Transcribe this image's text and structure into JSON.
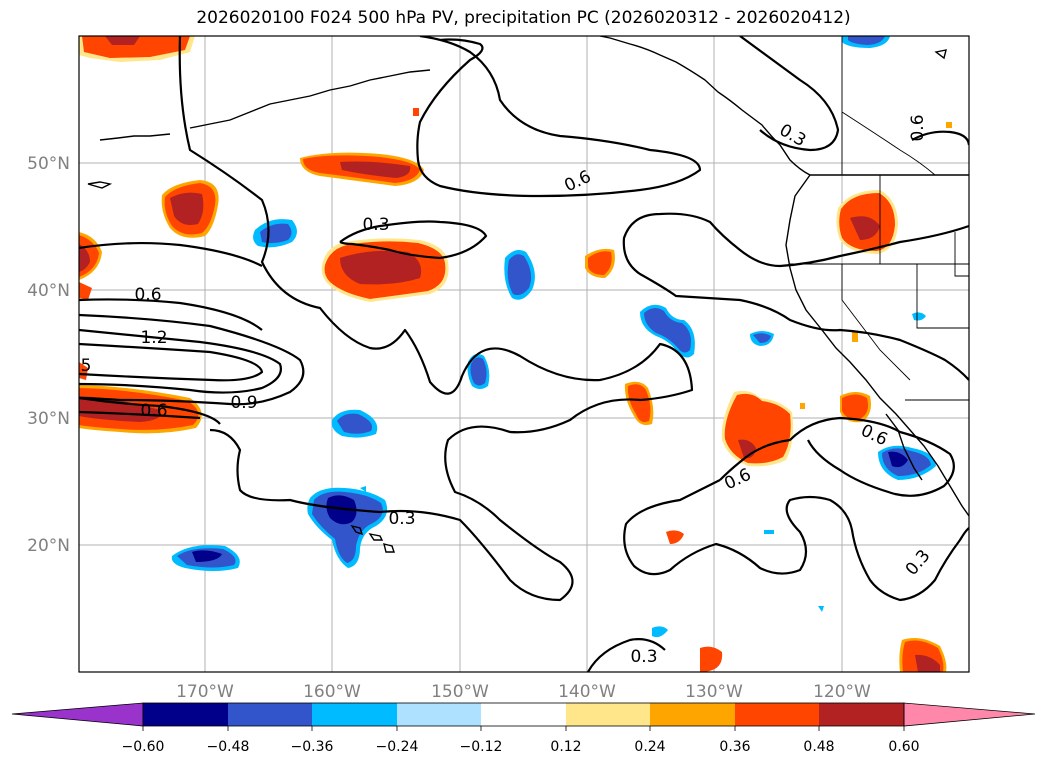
{
  "title": "2026020100 F024 500 hPa PV, precipitation PC (2026020312 - 2026020412)",
  "colors": {
    "coast": "#000000",
    "contour": "#000000",
    "grid": "#b0b0b0",
    "tick_label": "#808080",
    "band_colors": [
      "#9933cc",
      "#00008b",
      "#3355cc",
      "#00bbff",
      "#aee0ff",
      "#ffffff",
      "#ffe68a",
      "#ffa500",
      "#ff4500",
      "#b22222",
      "#ff88aa"
    ]
  },
  "map": {
    "lat_labels": [
      "50°N",
      "40°N",
      "30°N",
      "20°N"
    ],
    "lon_labels": [
      "170°W",
      "160°W",
      "150°W",
      "140°W",
      "130°W",
      "120°W"
    ],
    "contour_labels": [
      "0.3",
      "0.6",
      "0.3",
      "0.6",
      "1.2",
      "5",
      "0.9",
      "0.6",
      "0.6",
      "0.6",
      "0.3",
      "0.3",
      "0.3",
      "0.6"
    ]
  },
  "colorbar": {
    "tick_labels": [
      "−0.60",
      "−0.48",
      "−0.36",
      "−0.24",
      "−0.12",
      "0.12",
      "0.24",
      "0.36",
      "0.48",
      "0.60"
    ]
  }
}
